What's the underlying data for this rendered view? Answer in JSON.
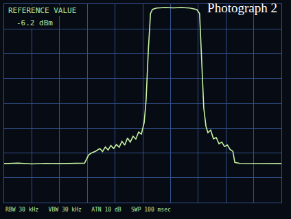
{
  "chart_data": {
    "type": "line",
    "title": "Photograph 2",
    "annotations": [
      {
        "text": "REFERENCE VALUE"
      },
      {
        "text": "-6.2 dBm"
      },
      {
        "text": "RBW 30 kHz   VBW 30 kHz   ATN 10 dB   SWP 100 msec"
      }
    ],
    "x": [
      0,
      0.5,
      1,
      1.5,
      2,
      2.5,
      2.9,
      3.05,
      3.15,
      3.3,
      3.45,
      3.55,
      3.65,
      3.75,
      3.85,
      3.95,
      4.05,
      4.15,
      4.25,
      4.35,
      4.45,
      4.55,
      4.65,
      4.75,
      4.85,
      4.95,
      5.05,
      5.12,
      5.2,
      5.28,
      5.35,
      5.5,
      5.8,
      6.1,
      6.4,
      6.7,
      6.95,
      7.05,
      7.12,
      7.2,
      7.28,
      7.35,
      7.45,
      7.55,
      7.65,
      7.75,
      7.85,
      7.95,
      8.05,
      8.15,
      8.25,
      8.32,
      8.5,
      9,
      9.5,
      10
    ],
    "color": "#c6f2a2",
    "values": [
      -70.5,
      -70.3,
      -70.6,
      -70.4,
      -70.5,
      -70.4,
      -70.3,
      -67,
      -66.2,
      -65.5,
      -64.4,
      -65.6,
      -63.8,
      -65,
      -63.2,
      -64.4,
      -62.8,
      -63.9,
      -61.5,
      -63,
      -60.2,
      -61.8,
      -59.5,
      -60.6,
      -57.8,
      -58.6,
      -54,
      -45,
      -25,
      -10,
      -8.3,
      -7.8,
      -7.6,
      -7.7,
      -7.6,
      -7.8,
      -8.4,
      -10,
      -28,
      -48,
      -55.5,
      -58,
      -57,
      -60.5,
      -60,
      -62.5,
      -61.8,
      -63.6,
      -63,
      -64.8,
      -65.5,
      -70,
      -70.4,
      -70.5,
      -70.4,
      -70.5
    ],
    "xlim": [
      0,
      10
    ],
    "xticks": [
      0,
      1,
      2,
      3,
      4,
      5,
      6,
      7,
      8,
      9,
      10
    ],
    "ylim": [
      -86.2,
      -6.2
    ],
    "yticks": [
      -86.2,
      -76.2,
      -66.2,
      -56.2,
      -46.2,
      -36.2,
      -26.2,
      -16.2,
      -6.2
    ],
    "grid": true,
    "tick_labels": false
  }
}
